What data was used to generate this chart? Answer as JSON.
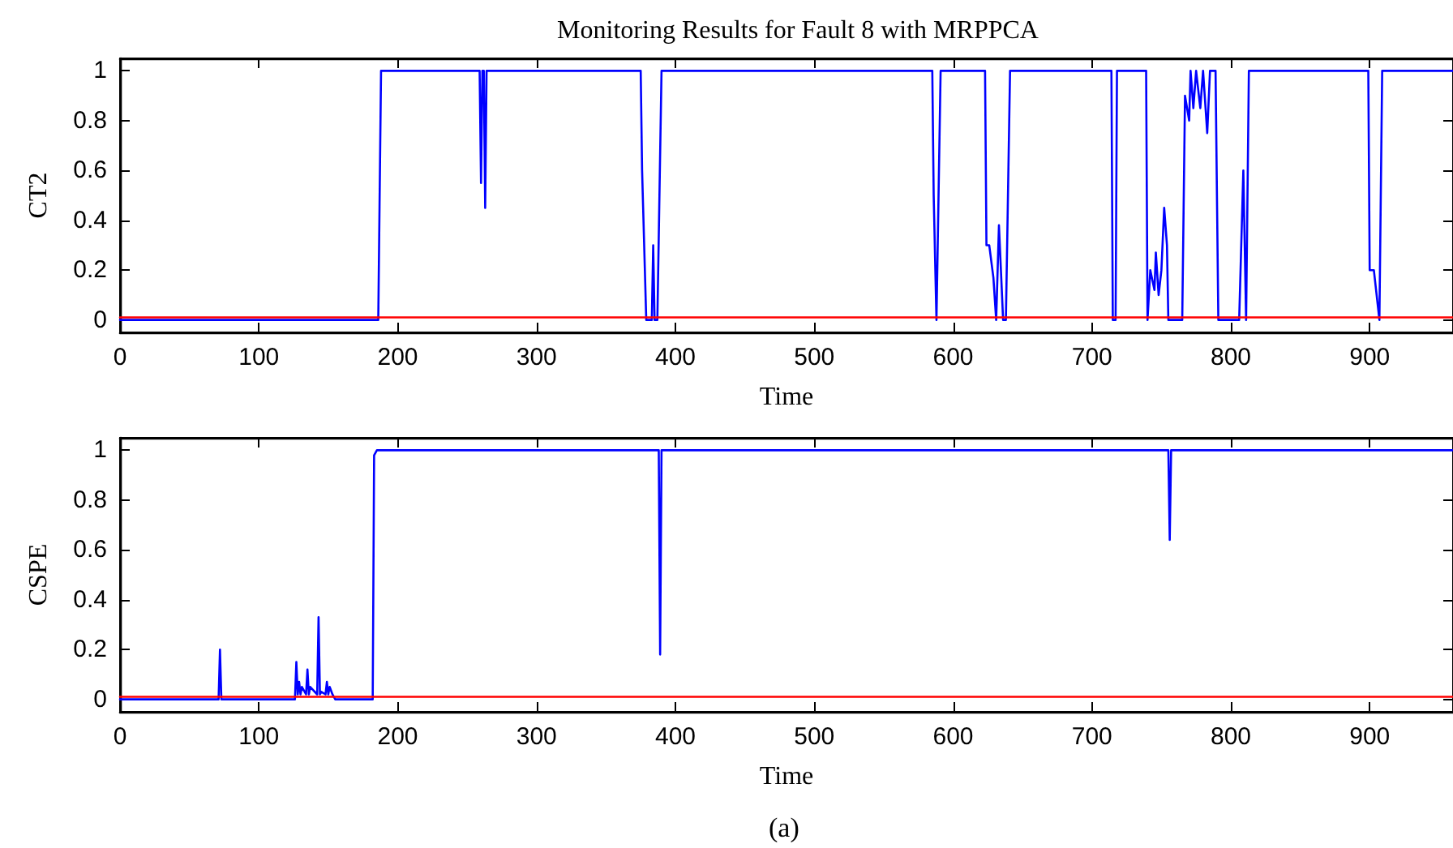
{
  "chart_data": [
    {
      "type": "line",
      "title": "Monitoring Results for Fault 8 with MRPPCA",
      "xlabel": "Time",
      "ylabel": "CT2",
      "xlim": [
        0,
        960
      ],
      "xticks": [
        0,
        100,
        200,
        300,
        400,
        500,
        600,
        700,
        800,
        900
      ],
      "ylim": [
        -0.05,
        1.05
      ],
      "yticks": [
        0,
        0.2,
        0.4,
        0.6,
        0.8,
        1
      ],
      "grid": false,
      "marker": "none",
      "line_style": "solid",
      "series": [
        {
          "color": "#0000ff",
          "x": [
            0,
            186,
            188,
            259,
            260,
            261,
            262,
            263,
            264,
            375,
            376,
            379,
            383,
            384,
            385,
            387,
            390,
            585,
            586,
            588,
            591,
            623,
            624,
            626,
            629,
            631,
            633,
            636,
            638,
            641,
            714,
            715,
            717,
            718,
            739,
            740,
            742,
            745,
            746,
            748,
            750,
            752,
            754,
            755,
            765,
            767,
            770,
            771,
            773,
            775,
            778,
            780,
            783,
            785,
            789,
            791,
            806,
            809,
            811,
            813,
            899,
            900,
            903,
            907,
            909,
            960
          ],
          "values": [
            0,
            0,
            1,
            1,
            0.55,
            1,
            1,
            0.45,
            1,
            1,
            0.6,
            0,
            0,
            0.3,
            0,
            0,
            1,
            1,
            0.5,
            0,
            1,
            1,
            0.3,
            0.3,
            0.17,
            0,
            0.38,
            0,
            0,
            1,
            1,
            0,
            0,
            1,
            1,
            0,
            0.2,
            0.12,
            0.27,
            0.1,
            0.2,
            0.45,
            0.3,
            0,
            0,
            0.9,
            0.8,
            1,
            0.85,
            1,
            0.85,
            1,
            0.75,
            1,
            1,
            0,
            0,
            0.6,
            0,
            1,
            1,
            0.2,
            0.2,
            0,
            1,
            1
          ]
        },
        {
          "color": "#ff0000",
          "x": [
            0,
            960
          ],
          "values": [
            0.01,
            0.01
          ]
        }
      ]
    },
    {
      "type": "line",
      "xlabel": "Time",
      "ylabel": "CSPE",
      "annotations": [
        "(a)"
      ],
      "xlim": [
        0,
        960
      ],
      "xticks": [
        0,
        100,
        200,
        300,
        400,
        500,
        600,
        700,
        800,
        900
      ],
      "ylim": [
        -0.05,
        1.05
      ],
      "yticks": [
        0,
        0.2,
        0.4,
        0.6,
        0.8,
        1
      ],
      "grid": false,
      "marker": "none",
      "line_style": "solid",
      "series": [
        {
          "color": "#0000ff",
          "x": [
            0,
            71,
            72,
            73,
            126,
            127,
            128,
            129,
            130,
            131,
            134,
            135,
            136,
            137,
            142,
            143,
            144,
            145,
            148,
            149,
            150,
            151,
            153,
            155,
            182,
            183,
            185,
            388,
            389,
            390,
            755,
            756,
            757,
            960
          ],
          "values": [
            0,
            0,
            0.2,
            0,
            0,
            0.15,
            0.02,
            0.07,
            0.02,
            0.05,
            0.02,
            0.12,
            0.02,
            0.05,
            0.02,
            0.33,
            0.02,
            0.03,
            0.02,
            0.07,
            0.02,
            0.05,
            0.02,
            0,
            0,
            0.98,
            1,
            1,
            0.18,
            1,
            1,
            0.64,
            1,
            1
          ]
        },
        {
          "color": "#ff0000",
          "x": [
            0,
            960
          ],
          "values": [
            0.01,
            0.01
          ]
        }
      ]
    }
  ]
}
